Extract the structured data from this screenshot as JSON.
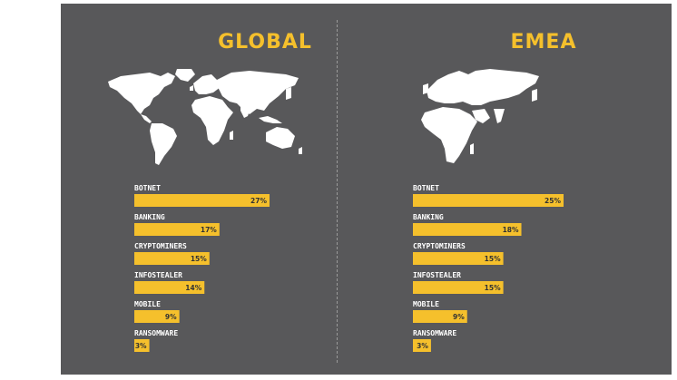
{
  "colors": {
    "background": "#58585a",
    "accent": "#f5c02c",
    "label": "#ffffff",
    "value_text": "#333333"
  },
  "chart_data": [
    {
      "type": "bar",
      "orientation": "horizontal",
      "title": "GLOBAL",
      "categories": [
        "BOTNET",
        "BANKING",
        "CRYPTOMINERS",
        "INFOSTEALER",
        "MOBILE",
        "RANSOMWARE"
      ],
      "values": [
        27,
        17,
        15,
        14,
        9,
        3
      ],
      "value_labels": [
        "27%",
        "17%",
        "15%",
        "14%",
        "9%",
        "3%"
      ],
      "unit": "%",
      "grid": false,
      "legend": "none"
    },
    {
      "type": "bar",
      "orientation": "horizontal",
      "title": "EMEA",
      "categories": [
        "BOTNET",
        "BANKING",
        "CRYPTOMINERS",
        "INFOSTEALER",
        "MOBILE",
        "RANSOMWARE"
      ],
      "values": [
        25,
        18,
        15,
        15,
        9,
        3
      ],
      "value_labels": [
        "25%",
        "18%",
        "15%",
        "15%",
        "9%",
        "3%"
      ],
      "unit": "%",
      "grid": false,
      "legend": "none"
    }
  ]
}
